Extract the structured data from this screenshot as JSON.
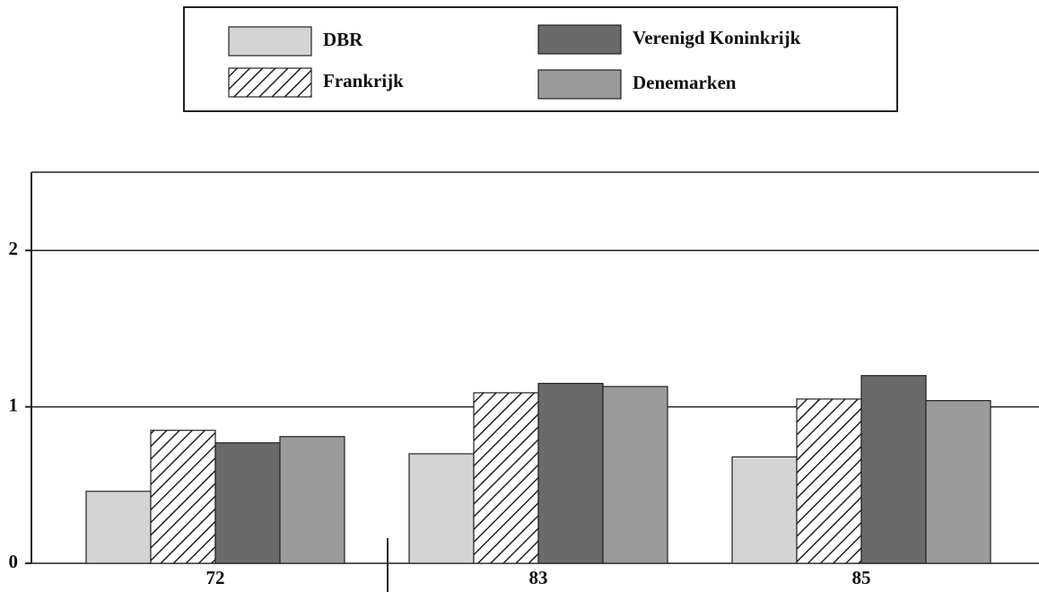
{
  "chart_data": {
    "type": "bar",
    "categories": [
      "72",
      "83",
      "85"
    ],
    "series": [
      {
        "name": "DBR",
        "color": "#d4d4d4",
        "values": [
          0.46,
          0.7,
          0.68
        ]
      },
      {
        "name": "Frankrijk",
        "color": "#ffffff",
        "pattern": "diagonal-hatch",
        "values": [
          0.85,
          1.09,
          1.05
        ]
      },
      {
        "name": "Verenigd Koninkrijk",
        "color": "#6a6a6a",
        "values": [
          0.77,
          1.15,
          1.2
        ]
      },
      {
        "name": "Denemarken",
        "color": "#9a9a9a",
        "values": [
          0.81,
          1.13,
          1.04
        ]
      }
    ],
    "ylim": [
      0,
      2.5
    ],
    "yticks": [
      0,
      1,
      2
    ],
    "grid": true
  }
}
